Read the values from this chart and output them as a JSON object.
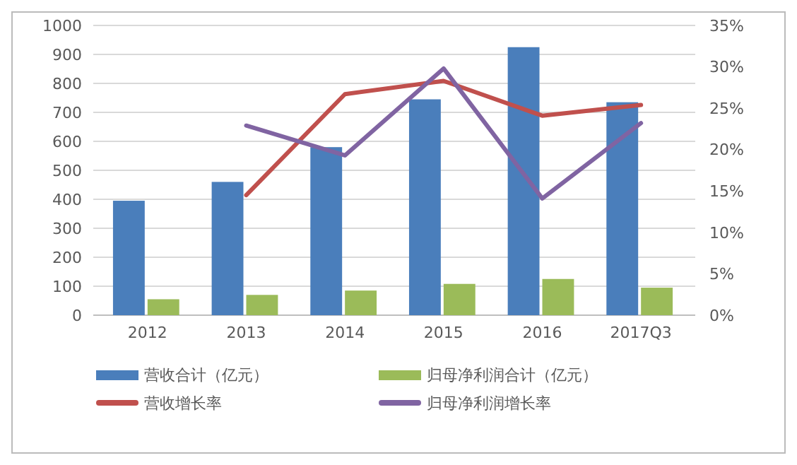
{
  "chart_data": {
    "type": "bar",
    "categories": [
      "2012",
      "2013",
      "2014",
      "2015",
      "2016",
      "2017Q3"
    ],
    "series": [
      {
        "name": "营收合计（亿元）",
        "color": "#4a7ebb",
        "values": [
          395,
          460,
          580,
          745,
          925,
          735
        ]
      },
      {
        "name": "归母净利润合计（亿元）",
        "color": "#9bbb59",
        "values": [
          55,
          70,
          85,
          108,
          125,
          95
        ]
      },
      {
        "name": "营收增长率",
        "type": "line",
        "axis": "y2",
        "color": "#c0504d",
        "values": [
          null,
          14.5,
          26.7,
          28.3,
          24.1,
          25.4
        ]
      },
      {
        "name": "归母净利润增长率",
        "type": "line",
        "axis": "y2",
        "color": "#8064a2",
        "values": [
          null,
          22.9,
          19.3,
          29.8,
          14.1,
          23.2
        ]
      }
    ],
    "ylim": [
      0,
      1000
    ],
    "yticks": [
      0,
      100,
      200,
      300,
      400,
      500,
      600,
      700,
      800,
      900,
      1000
    ],
    "y2lim": [
      0,
      35
    ],
    "y2ticks": [
      {
        "value": 0,
        "label": "0%"
      },
      {
        "value": 5,
        "label": "5%"
      },
      {
        "value": 10,
        "label": "10%"
      },
      {
        "value": 15,
        "label": "15%"
      },
      {
        "value": 20,
        "label": "20%"
      },
      {
        "value": 25,
        "label": "25%"
      },
      {
        "value": 30,
        "label": "30%"
      },
      {
        "value": 35,
        "label": "35%"
      }
    ],
    "grid": "y",
    "legend": "bottom",
    "marker": "none",
    "line_style": "solid"
  }
}
